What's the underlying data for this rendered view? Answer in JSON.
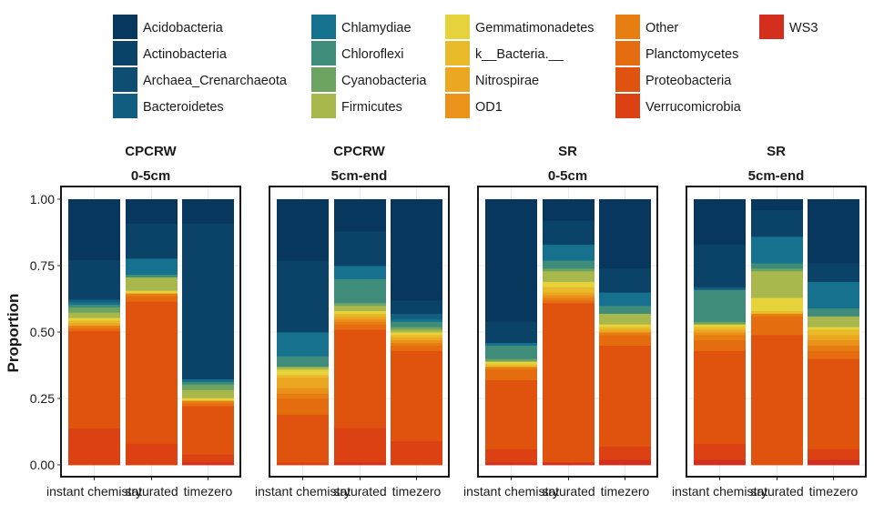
{
  "chart_data": {
    "type": "bar",
    "stacked": true,
    "ylabel": "Proportion",
    "xlabel": "",
    "ylim": [
      0,
      1
    ],
    "yticks": [
      "0.00",
      "0.25",
      "0.50",
      "0.75",
      "1.00"
    ],
    "ytick_values": [
      0,
      0.25,
      0.5,
      0.75,
      1
    ],
    "grid": true,
    "legend_position": "top",
    "categories": [
      "instant chemistry",
      "saturated",
      "timezero"
    ],
    "legend": [
      {
        "name": "Acidobacteria",
        "color": "#08375e"
      },
      {
        "name": "Actinobacteria",
        "color": "#0b4267"
      },
      {
        "name": "Archaea_Crenarchaeota",
        "color": "#0e4e72"
      },
      {
        "name": "Bacteroidetes",
        "color": "#125e80"
      },
      {
        "name": "Chlamydiae",
        "color": "#16718f"
      },
      {
        "name": "Chloroflexi",
        "color": "#3f8c7a"
      },
      {
        "name": "Cyanobacteria",
        "color": "#6ea462"
      },
      {
        "name": "Firmicutes",
        "color": "#a9b84c"
      },
      {
        "name": "Gemmatimonadetes",
        "color": "#e6d23a"
      },
      {
        "name": "k__Bacteria.__",
        "color": "#e9bb2a"
      },
      {
        "name": "Nitrospirae",
        "color": "#eba622"
      },
      {
        "name": "OD1",
        "color": "#ea9219"
      },
      {
        "name": "Other",
        "color": "#e77e12"
      },
      {
        "name": "Planctomycetes",
        "color": "#e56c0f"
      },
      {
        "name": "Proteobacteria",
        "color": "#e0530f"
      },
      {
        "name": "Verrucomicrobia",
        "color": "#dc4113"
      },
      {
        "name": "WS3",
        "color": "#d42f1e"
      }
    ],
    "panels": [
      {
        "site": "CPCRW",
        "depth": "0-5cm",
        "series": [
          {
            "name": "Acidobacteria",
            "values": [
              0.23,
              0.09,
              0.09
            ]
          },
          {
            "name": "Actinobacteria",
            "values": [
              0.15,
              0.13,
              0.58
            ]
          },
          {
            "name": "Archaea_Crenarchaeota",
            "values": [
              0.0,
              0.0,
              0.0
            ]
          },
          {
            "name": "Bacteroidetes",
            "values": [
              0.01,
              0.0,
              0.0
            ]
          },
          {
            "name": "Chlamydiae",
            "values": [
              0.01,
              0.06,
              0.01
            ]
          },
          {
            "name": "Chloroflexi",
            "values": [
              0.01,
              0.01,
              0.01
            ]
          },
          {
            "name": "Cyanobacteria",
            "values": [
              0.02,
              0.0,
              0.02
            ]
          },
          {
            "name": "Firmicutes",
            "values": [
              0.02,
              0.05,
              0.03
            ]
          },
          {
            "name": "Gemmatimonadetes",
            "values": [
              0.01,
              0.01,
              0.01
            ]
          },
          {
            "name": "k__Bacteria.__",
            "values": [
              0.01,
              0.0,
              0.0
            ]
          },
          {
            "name": "Nitrospirae",
            "values": [
              0.01,
              0.0,
              0.0
            ]
          },
          {
            "name": "OD1",
            "values": [
              0.0,
              0.0,
              0.0
            ]
          },
          {
            "name": "Other",
            "values": [
              0.01,
              0.01,
              0.01
            ]
          },
          {
            "name": "Planctomycetes",
            "values": [
              0.01,
              0.02,
              0.01
            ]
          },
          {
            "name": "Proteobacteria",
            "values": [
              0.37,
              0.53,
              0.18
            ]
          },
          {
            "name": "Verrucomicrobia",
            "values": [
              0.14,
              0.08,
              0.03
            ]
          },
          {
            "name": "WS3",
            "values": [
              0.0,
              0.0,
              0.01
            ]
          }
        ]
      },
      {
        "site": "CPCRW",
        "depth": "5cm-end",
        "series": [
          {
            "name": "Acidobacteria",
            "values": [
              0.23,
              0.12,
              0.38
            ]
          },
          {
            "name": "Actinobacteria",
            "values": [
              0.27,
              0.13,
              0.05
            ]
          },
          {
            "name": "Archaea_Crenarchaeota",
            "values": [
              0.0,
              0.0,
              0.0
            ]
          },
          {
            "name": "Bacteroidetes",
            "values": [
              0.0,
              0.0,
              0.02
            ]
          },
          {
            "name": "Chlamydiae",
            "values": [
              0.09,
              0.05,
              0.01
            ]
          },
          {
            "name": "Chloroflexi",
            "values": [
              0.04,
              0.09,
              0.02
            ]
          },
          {
            "name": "Cyanobacteria",
            "values": [
              0.0,
              0.01,
              0.01
            ]
          },
          {
            "name": "Firmicutes",
            "values": [
              0.01,
              0.02,
              0.01
            ]
          },
          {
            "name": "Gemmatimonadetes",
            "values": [
              0.02,
              0.01,
              0.01
            ]
          },
          {
            "name": "k__Bacteria.__",
            "values": [
              0.01,
              0.01,
              0.01
            ]
          },
          {
            "name": "Nitrospirae",
            "values": [
              0.04,
              0.01,
              0.01
            ]
          },
          {
            "name": "OD1",
            "values": [
              0.02,
              0.01,
              0.01
            ]
          },
          {
            "name": "Other",
            "values": [
              0.02,
              0.01,
              0.01
            ]
          },
          {
            "name": "Planctomycetes",
            "values": [
              0.06,
              0.02,
              0.02
            ]
          },
          {
            "name": "Proteobacteria",
            "values": [
              0.18,
              0.37,
              0.34
            ]
          },
          {
            "name": "Verrucomicrobia",
            "values": [
              0.01,
              0.13,
              0.09
            ]
          },
          {
            "name": "WS3",
            "values": [
              0.0,
              0.01,
              0.0
            ]
          }
        ]
      },
      {
        "site": "SR",
        "depth": "0-5cm",
        "series": [
          {
            "name": "Acidobacteria",
            "values": [
              0.46,
              0.08,
              0.26
            ]
          },
          {
            "name": "Actinobacteria",
            "values": [
              0.08,
              0.09,
              0.09
            ]
          },
          {
            "name": "Archaea_Crenarchaeota",
            "values": [
              0.0,
              0.0,
              0.0
            ]
          },
          {
            "name": "Bacteroidetes",
            "values": [
              0.0,
              0.0,
              0.0
            ]
          },
          {
            "name": "Chlamydiae",
            "values": [
              0.01,
              0.06,
              0.05
            ]
          },
          {
            "name": "Chloroflexi",
            "values": [
              0.05,
              0.03,
              0.03
            ]
          },
          {
            "name": "Cyanobacteria",
            "values": [
              0.01,
              0.01,
              0.0
            ]
          },
          {
            "name": "Firmicutes",
            "values": [
              0.0,
              0.04,
              0.04
            ]
          },
          {
            "name": "Gemmatimonadetes",
            "values": [
              0.01,
              0.02,
              0.01
            ]
          },
          {
            "name": "k__Bacteria.__",
            "values": [
              0.01,
              0.02,
              0.01
            ]
          },
          {
            "name": "Nitrospirae",
            "values": [
              0.0,
              0.01,
              0.01
            ]
          },
          {
            "name": "OD1",
            "values": [
              0.0,
              0.01,
              0.0
            ]
          },
          {
            "name": "Other",
            "values": [
              0.01,
              0.01,
              0.01
            ]
          },
          {
            "name": "Planctomycetes",
            "values": [
              0.04,
              0.01,
              0.04
            ]
          },
          {
            "name": "Proteobacteria",
            "values": [
              0.26,
              0.6,
              0.38
            ]
          },
          {
            "name": "Verrucomicrobia",
            "values": [
              0.05,
              0.0,
              0.05
            ]
          },
          {
            "name": "WS3",
            "values": [
              0.01,
              0.01,
              0.02
            ]
          }
        ]
      },
      {
        "site": "SR",
        "depth": "5cm-end",
        "series": [
          {
            "name": "Acidobacteria",
            "values": [
              0.17,
              0.04,
              0.24
            ]
          },
          {
            "name": "Actinobacteria",
            "values": [
              0.16,
              0.1,
              0.07
            ]
          },
          {
            "name": "Archaea_Crenarchaeota",
            "values": [
              0.0,
              0.0,
              0.0
            ]
          },
          {
            "name": "Bacteroidetes",
            "values": [
              0.01,
              0.0,
              0.0
            ]
          },
          {
            "name": "Chlamydiae",
            "values": [
              0.0,
              0.1,
              0.1
            ]
          },
          {
            "name": "Chloroflexi",
            "values": [
              0.12,
              0.02,
              0.03
            ]
          },
          {
            "name": "Cyanobacteria",
            "values": [
              0.01,
              0.01,
              0.0
            ]
          },
          {
            "name": "Firmicutes",
            "values": [
              0.0,
              0.1,
              0.04
            ]
          },
          {
            "name": "Gemmatimonadetes",
            "values": [
              0.01,
              0.05,
              0.01
            ]
          },
          {
            "name": "k__Bacteria.__",
            "values": [
              0.01,
              0.01,
              0.02
            ]
          },
          {
            "name": "Nitrospirae",
            "values": [
              0.01,
              0.0,
              0.02
            ]
          },
          {
            "name": "OD1",
            "values": [
              0.01,
              0.0,
              0.02
            ]
          },
          {
            "name": "Other",
            "values": [
              0.02,
              0.01,
              0.02
            ]
          },
          {
            "name": "Planctomycetes",
            "values": [
              0.04,
              0.07,
              0.03
            ]
          },
          {
            "name": "Proteobacteria",
            "values": [
              0.35,
              0.49,
              0.34
            ]
          },
          {
            "name": "Verrucomicrobia",
            "values": [
              0.06,
              0.0,
              0.04
            ]
          },
          {
            "name": "WS3",
            "values": [
              0.02,
              0.0,
              0.02
            ]
          }
        ]
      }
    ]
  }
}
